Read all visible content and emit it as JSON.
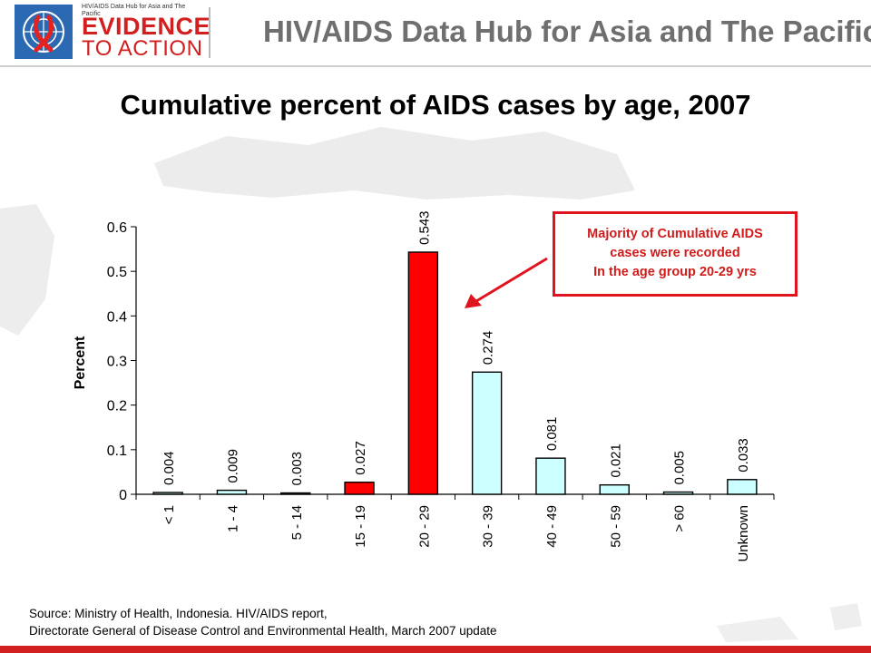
{
  "header": {
    "logo_small": "HIV/AIDS Data Hub for Asia and The Pacific",
    "logo_line1": "EVIDENCE",
    "logo_line2": "TO ACTION",
    "hub_title": "HIV/AIDS Data Hub for Asia and The Pacific",
    "brand_red": "#d21f1f"
  },
  "chart_data": {
    "type": "bar",
    "title": "Cumulative percent of AIDS cases by age, 2007",
    "ylabel": "Percent",
    "xlabel": "",
    "ylim": [
      0,
      0.6
    ],
    "yticks": [
      "0",
      "0.1",
      "0.2",
      "0.3",
      "0.4",
      "0.5",
      "0.6"
    ],
    "grid": false,
    "categories": [
      "< 1",
      "1 - 4",
      "5 - 14",
      "15 - 19",
      "20 - 29",
      "30 - 39",
      "40 - 49",
      "50 - 59",
      "> 60",
      "Unknown"
    ],
    "values": [
      0.004,
      0.009,
      0.003,
      0.027,
      0.543,
      0.274,
      0.081,
      0.021,
      0.005,
      0.033
    ],
    "data_labels": [
      "0.004",
      "0.009",
      "0.003",
      "0.027",
      "0.543",
      "0.274",
      "0.081",
      "0.021",
      "0.005",
      "0.033"
    ],
    "colors": [
      "#ccffff",
      "#ccffff",
      "#ccffff",
      "#ff0000",
      "#ff0000",
      "#ccffff",
      "#ccffff",
      "#ccffff",
      "#ccffff",
      "#ccffff"
    ],
    "highlight_color": "#ff0000",
    "base_color": "#ccffff"
  },
  "callout": {
    "lines": [
      "Majority of Cumulative AIDS",
      "cases were recorded",
      "In the age group 20-29 yrs"
    ],
    "color": "#e0141e"
  },
  "source": {
    "line1": "Source: Ministry of Health, Indonesia. HIV/AIDS report,",
    "line2": "Directorate General of Disease Control and Environmental Health, March 2007 update"
  }
}
